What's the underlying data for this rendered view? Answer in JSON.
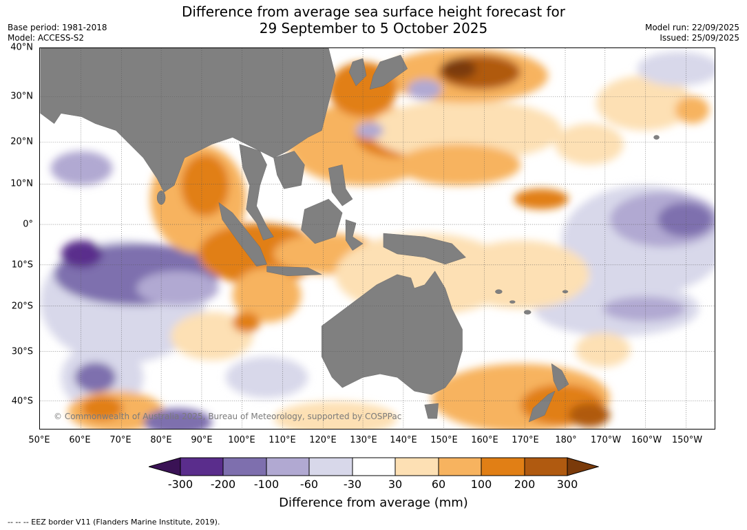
{
  "header": {
    "title_line1": "Difference from average sea surface height forecast for",
    "title_line2": "29 September to 5 October 2025",
    "base_period": "Base period: 1981-2018",
    "model": "Model: ACCESS-S2",
    "model_run": "Model run: 22/09/2025",
    "issued": "Issued: 25/09/2025"
  },
  "map": {
    "lat_labels": [
      "40°N",
      "30°N",
      "20°N",
      "10°N",
      "0°",
      "10°S",
      "20°S",
      "30°S",
      "40°S"
    ],
    "lon_labels": [
      "50°E",
      "60°E",
      "70°E",
      "80°E",
      "90°E",
      "100°E",
      "110°E",
      "120°E",
      "130°E",
      "140°E",
      "150°E",
      "160°E",
      "170°E",
      "180°",
      "170°W",
      "160°W",
      "150°W"
    ],
    "copyright": "© Commonwealth of Australia 2025, Bureau of Meteorology, supported by COSPPac"
  },
  "legend": {
    "title": "Difference from average (mm)",
    "ticks": [
      "-300",
      "-200",
      "-100",
      "-60",
      "-30",
      "30",
      "60",
      "100",
      "200",
      "300"
    ],
    "colors": [
      "#3a1255",
      "#5a2d8c",
      "#7e6fae",
      "#b1a9d2",
      "#d8d8ea",
      "#ffffff",
      "#fde0b4",
      "#f7b35f",
      "#e17f15",
      "#b05a10",
      "#7a3a0a"
    ]
  },
  "footnote": "--  --  -- EEZ border V11 (Flanders Marine Institute, 2019)."
}
